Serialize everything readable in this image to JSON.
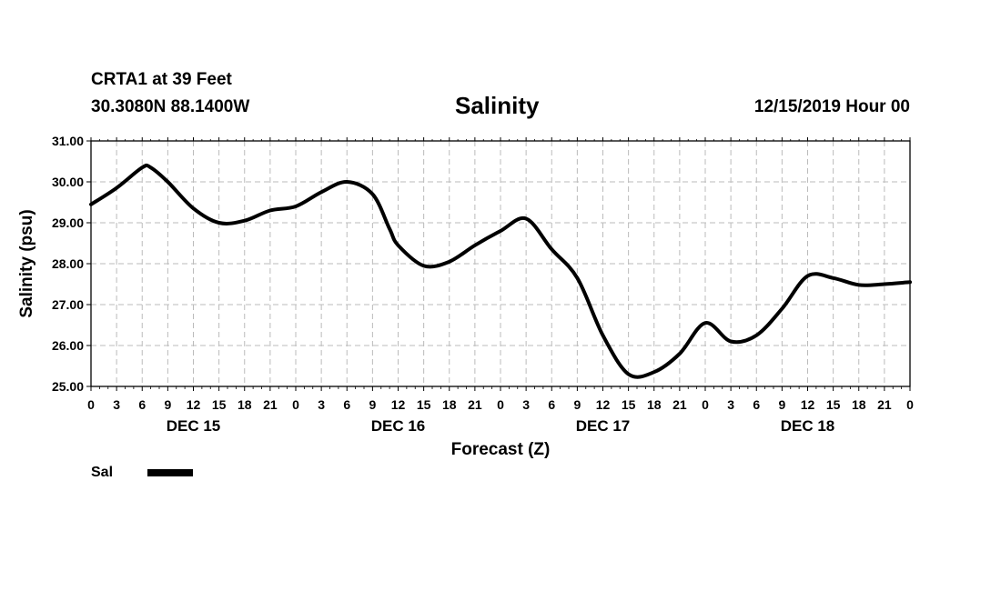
{
  "header": {
    "station": "CRTA1 at 39 Feet",
    "coords": "30.3080N 88.1400W",
    "title": "Salinity",
    "timestamp": "12/15/2019 Hour 00"
  },
  "colors": {
    "line": "#000000",
    "grid": "#bbbbbb",
    "background": "#ffffff"
  },
  "chart_data": {
    "type": "line",
    "title": "Salinity",
    "xlabel": "Forecast (Z)",
    "ylabel": "Salinity (psu)",
    "xlim": [
      0,
      96
    ],
    "ylim": [
      25,
      31
    ],
    "y_ticks": [
      25,
      26,
      27,
      28,
      29,
      30,
      31
    ],
    "y_tick_labels": [
      "25.00",
      "26.00",
      "27.00",
      "28.00",
      "29.00",
      "30.00",
      "31.00"
    ],
    "x_ticks": [
      0,
      3,
      6,
      9,
      12,
      15,
      18,
      21,
      24,
      27,
      30,
      33,
      36,
      39,
      42,
      45,
      48,
      51,
      54,
      57,
      60,
      63,
      66,
      69,
      72,
      75,
      78,
      81,
      84,
      87,
      90,
      93,
      96
    ],
    "x_tick_labels": [
      "0",
      "3",
      "6",
      "9",
      "12",
      "15",
      "18",
      "21",
      "0",
      "3",
      "6",
      "9",
      "12",
      "15",
      "18",
      "21",
      "0",
      "3",
      "6",
      "9",
      "12",
      "15",
      "18",
      "21",
      "0",
      "3",
      "6",
      "9",
      "12",
      "15",
      "18",
      "21",
      "0"
    ],
    "day_labels": [
      {
        "label": "DEC 15",
        "hour": 12
      },
      {
        "label": "DEC 16",
        "hour": 36
      },
      {
        "label": "DEC 17",
        "hour": 60
      },
      {
        "label": "DEC 18",
        "hour": 84
      }
    ],
    "grid": true,
    "legend_position": "bottom-left",
    "series": [
      {
        "name": "Sal",
        "x": [
          0,
          3,
          6,
          7,
          9,
          12,
          15,
          18,
          21,
          24,
          27,
          30,
          33,
          35,
          36,
          39,
          42,
          45,
          48,
          51,
          54,
          57,
          60,
          63,
          66,
          69,
          72,
          75,
          78,
          81,
          84,
          87,
          90,
          93,
          96
        ],
        "values": [
          29.45,
          29.85,
          30.35,
          30.35,
          30.0,
          29.35,
          29.0,
          29.05,
          29.3,
          29.4,
          29.75,
          30.0,
          29.7,
          28.85,
          28.45,
          27.95,
          28.05,
          28.45,
          28.8,
          29.1,
          28.35,
          27.65,
          26.25,
          25.3,
          25.35,
          25.8,
          26.55,
          26.1,
          26.25,
          26.9,
          27.7,
          27.65,
          27.48,
          27.5,
          27.55
        ]
      }
    ]
  }
}
